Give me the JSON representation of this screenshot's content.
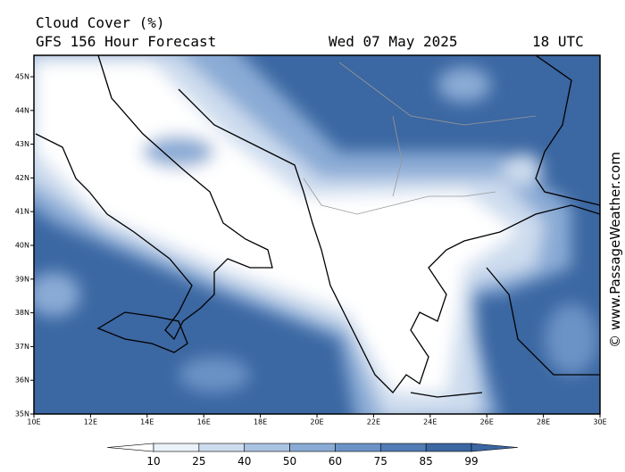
{
  "header": {
    "title": "Cloud Cover (%)",
    "subtitle": "GFS 156 Hour Forecast",
    "date": "Wed 07 May 2025",
    "time": "18 UTC"
  },
  "map": {
    "lon_labels": [
      "10E",
      "12E",
      "14E",
      "16E",
      "18E",
      "20E",
      "22E",
      "24E",
      "26E",
      "28E",
      "30E"
    ],
    "lat_labels": [
      "45N",
      "44N",
      "43N",
      "42N",
      "41N",
      "40N",
      "39N",
      "38N",
      "37N",
      "36N",
      "35N"
    ]
  },
  "legend": {
    "levels": [
      {
        "label": "10",
        "color": "#ffffff"
      },
      {
        "label": "25",
        "color": "#eaf1f9"
      },
      {
        "label": "40",
        "color": "#cddcee"
      },
      {
        "label": "50",
        "color": "#aac3e2"
      },
      {
        "label": "60",
        "color": "#8aabd5"
      },
      {
        "label": "75",
        "color": "#6c93c6"
      },
      {
        "label": "85",
        "color": "#527cb6"
      },
      {
        "label": "99",
        "color": "#3b67a2"
      }
    ]
  },
  "watermark": "© www.PassageWeather.com"
}
